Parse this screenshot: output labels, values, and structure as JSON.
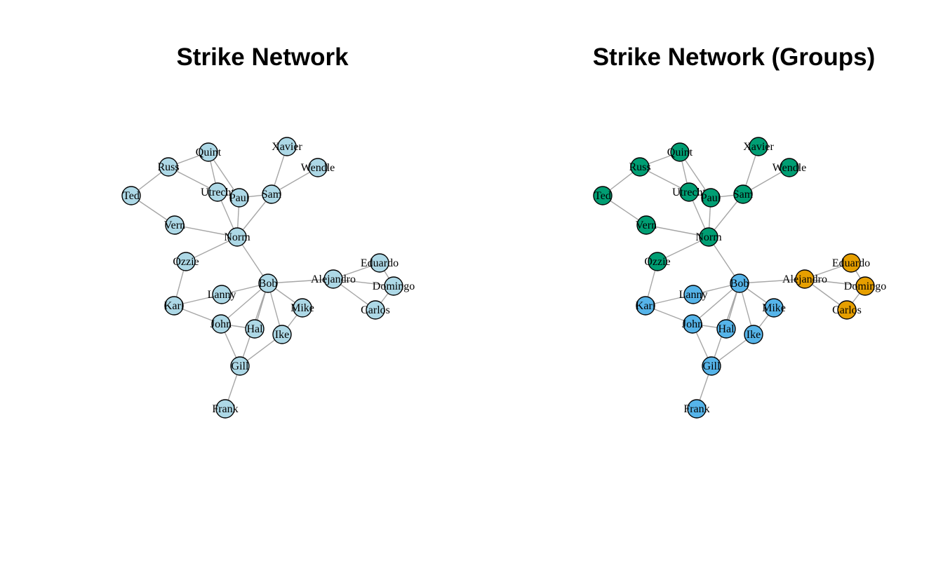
{
  "panels": [
    {
      "title": "Strike Network",
      "default_color": "#add8e6",
      "group_colors": null
    },
    {
      "title": "Strike Network (Groups)",
      "default_color": "#add8e6",
      "group_colors": {
        "green": "#009e73",
        "blue": "#56b4e9",
        "orange": "#e69f00"
      }
    }
  ],
  "nodes": [
    {
      "id": "Quint",
      "group": "green"
    },
    {
      "id": "Russ",
      "group": "green"
    },
    {
      "id": "Ted",
      "group": "green"
    },
    {
      "id": "Utrecht",
      "group": "green"
    },
    {
      "id": "Paul",
      "group": "green"
    },
    {
      "id": "Sam",
      "group": "green"
    },
    {
      "id": "Xavier",
      "group": "green"
    },
    {
      "id": "Wendle",
      "group": "green"
    },
    {
      "id": "Vern",
      "group": "green"
    },
    {
      "id": "Norm",
      "group": "green"
    },
    {
      "id": "Ozzie",
      "group": "green"
    },
    {
      "id": "Bob",
      "group": "blue"
    },
    {
      "id": "Lanny",
      "group": "blue"
    },
    {
      "id": "Karl",
      "group": "blue"
    },
    {
      "id": "John",
      "group": "blue"
    },
    {
      "id": "Hal",
      "group": "blue"
    },
    {
      "id": "Ike",
      "group": "blue"
    },
    {
      "id": "Mike",
      "group": "blue"
    },
    {
      "id": "Gill",
      "group": "blue"
    },
    {
      "id": "Frank",
      "group": "blue"
    },
    {
      "id": "Alejandro",
      "group": "orange"
    },
    {
      "id": "Eduardo",
      "group": "orange"
    },
    {
      "id": "Domingo",
      "group": "orange"
    },
    {
      "id": "Carlos",
      "group": "orange"
    }
  ],
  "edges": [
    [
      "Quint",
      "Russ"
    ],
    [
      "Quint",
      "Utrecht"
    ],
    [
      "Quint",
      "Paul"
    ],
    [
      "Russ",
      "Ted"
    ],
    [
      "Russ",
      "Utrecht"
    ],
    [
      "Ted",
      "Vern"
    ],
    [
      "Utrecht",
      "Paul"
    ],
    [
      "Utrecht",
      "Norm"
    ],
    [
      "Paul",
      "Sam"
    ],
    [
      "Paul",
      "Norm"
    ],
    [
      "Sam",
      "Xavier"
    ],
    [
      "Sam",
      "Wendle"
    ],
    [
      "Sam",
      "Norm"
    ],
    [
      "Vern",
      "Norm"
    ],
    [
      "Norm",
      "Ozzie"
    ],
    [
      "Norm",
      "Bob"
    ],
    [
      "Ozzie",
      "Karl"
    ],
    [
      "Karl",
      "Lanny"
    ],
    [
      "Karl",
      "John"
    ],
    [
      "Bob",
      "Lanny"
    ],
    [
      "Bob",
      "John"
    ],
    [
      "Bob",
      "Hal"
    ],
    [
      "Bob",
      "Ike"
    ],
    [
      "Bob",
      "Mike"
    ],
    [
      "Bob",
      "Gill"
    ],
    [
      "Bob",
      "Alejandro"
    ],
    [
      "John",
      "Hal"
    ],
    [
      "John",
      "Gill"
    ],
    [
      "Ike",
      "Gill"
    ],
    [
      "Ike",
      "Mike"
    ],
    [
      "Gill",
      "Frank"
    ],
    [
      "Alejandro",
      "Eduardo"
    ],
    [
      "Alejandro",
      "Domingo"
    ],
    [
      "Alejandro",
      "Carlos"
    ],
    [
      "Eduardo",
      "Domingo"
    ],
    [
      "Domingo",
      "Carlos"
    ]
  ]
}
